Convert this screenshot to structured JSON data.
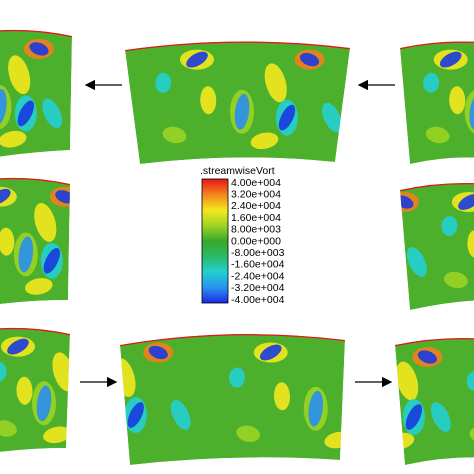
{
  "legend": {
    "title": ".streamwiseVort",
    "labels": [
      "4.00e+004",
      "3.20e+004",
      "2.40e+004",
      "1.60e+004",
      "8.00e+003",
      "0.00e+000",
      "-8.00e+003",
      "-1.60e+004",
      "-2.40e+004",
      "-3.20e+004",
      "-4.00e+004"
    ]
  }
}
